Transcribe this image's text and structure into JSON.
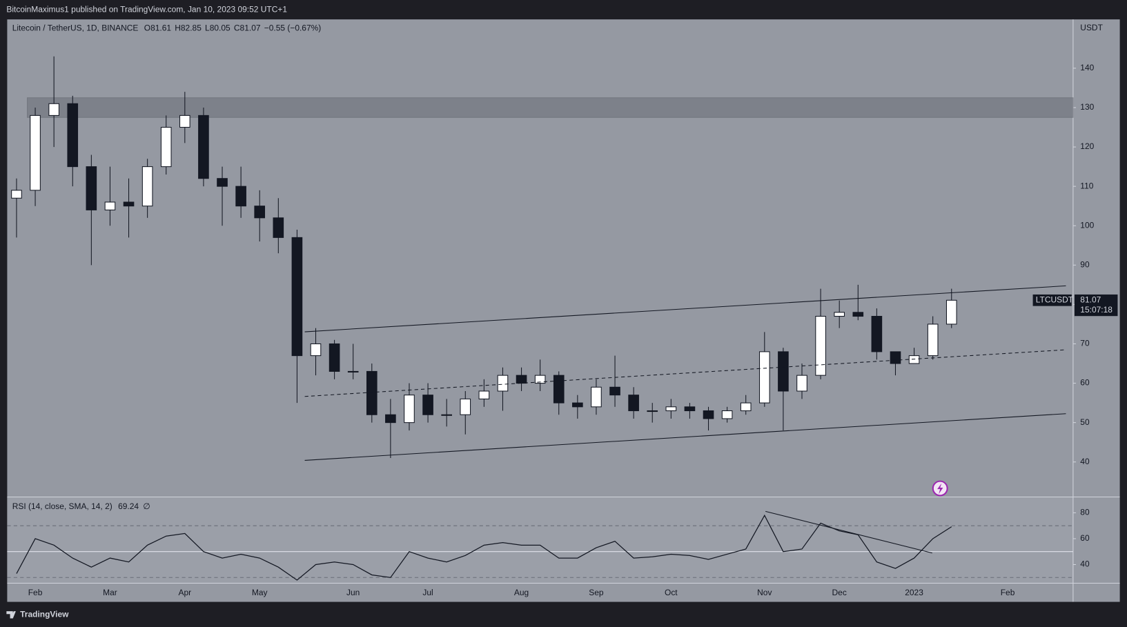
{
  "header": {
    "publisher": "BitcoinMaximus1 published on TradingView.com, Jan 10, 2023 09:52 UTC+1",
    "brand": "TradingView"
  },
  "chart_data": [
    {
      "type": "candlestick",
      "title": "Litecoin / TetherUS, 1D, BINANCE",
      "legend_items": [
        {
          "key": "O",
          "value": 81.61
        },
        {
          "key": "H",
          "value": 82.85
        },
        {
          "key": "L",
          "value": 80.05
        },
        {
          "key": "C",
          "value": 81.07
        }
      ],
      "change": "−0.55 (−0.67%)",
      "currency": "USDT",
      "symbol_label": "LTCUSDT",
      "countdown": "15:07:18",
      "categories": [
        null,
        "Feb",
        null,
        null,
        null,
        "Mar",
        null,
        null,
        null,
        "Apr",
        null,
        null,
        null,
        "May",
        null,
        null,
        null,
        null,
        "Jun",
        null,
        null,
        null,
        "Jul",
        null,
        null,
        null,
        null,
        "Aug",
        null,
        null,
        null,
        "Sep",
        null,
        null,
        null,
        "Oct",
        null,
        null,
        null,
        null,
        "Nov",
        null,
        null,
        null,
        "Dec",
        null,
        null,
        null,
        "2023",
        null,
        null,
        null,
        null,
        "Feb",
        null,
        null,
        null
      ],
      "open": [
        107,
        109,
        128,
        131,
        115,
        104,
        106,
        105,
        115,
        125,
        128,
        112,
        110,
        105,
        102,
        97,
        67,
        70,
        63,
        63,
        52,
        50,
        57,
        52,
        52,
        56,
        58,
        62,
        60,
        62,
        55,
        54,
        59,
        57,
        53,
        53,
        54,
        53,
        51,
        53,
        55,
        68,
        58,
        62,
        77,
        78,
        77,
        68,
        65,
        67,
        75,
        null,
        null,
        null,
        null,
        null,
        null
      ],
      "high": [
        112,
        130,
        143,
        133,
        118,
        115,
        112,
        117,
        128,
        134,
        130,
        115,
        115,
        109,
        107,
        99,
        74,
        71,
        70,
        65,
        56,
        60,
        60,
        56,
        58,
        61,
        64,
        64,
        66,
        63,
        57,
        61,
        67,
        59,
        55,
        56,
        55,
        54,
        54,
        57,
        73,
        69,
        65,
        84,
        81,
        85,
        79,
        68,
        69,
        77,
        84,
        null,
        null,
        null,
        null,
        null,
        null
      ],
      "low": [
        97,
        105,
        120,
        110,
        90,
        100,
        97,
        102,
        113,
        121,
        110,
        100,
        102,
        96,
        93,
        55,
        62,
        61,
        61,
        50,
        41,
        48,
        50,
        49,
        47,
        54,
        53,
        58,
        58,
        52,
        51,
        52,
        54,
        51,
        50,
        51,
        51,
        48,
        50,
        52,
        54,
        48,
        56,
        61,
        74,
        76,
        66,
        62,
        65,
        66,
        74,
        null,
        null,
        null,
        null,
        null,
        null
      ],
      "close": [
        109,
        128,
        131,
        115,
        104,
        106,
        105,
        115,
        125,
        128,
        112,
        110,
        105,
        102,
        97,
        67,
        70,
        63,
        63,
        52,
        50,
        57,
        52,
        52,
        56,
        58,
        62,
        60,
        62,
        55,
        54,
        59,
        57,
        53,
        53,
        54,
        53,
        51,
        53,
        55,
        68,
        58,
        62,
        77,
        78,
        77,
        68,
        65,
        67,
        75,
        81.07,
        null,
        null,
        null,
        null,
        null,
        null
      ],
      "up_color": "#ffffff",
      "down_color": "#131722",
      "zone": [
        127.5,
        132.5
      ],
      "ylim": [
        31.1,
        152.4
      ],
      "yticks": [
        40,
        50,
        60,
        70,
        80,
        90,
        100,
        110,
        120,
        130,
        140
      ]
    },
    {
      "type": "line",
      "title": "RSI (14, close, SMA, 14, 2)",
      "last_value": 69.24,
      "flag": "∅",
      "color": "#131722",
      "values": [
        33,
        60,
        55,
        45,
        38,
        45,
        42,
        55,
        62,
        64,
        50,
        45,
        48,
        45,
        38,
        28,
        40,
        42,
        40,
        32,
        30,
        50,
        45,
        42,
        47,
        55,
        57,
        55,
        55,
        45,
        45,
        53,
        58,
        45,
        46,
        48,
        47,
        44,
        48,
        52,
        78,
        50,
        52,
        72,
        66,
        63,
        42,
        37,
        45,
        60,
        69.24,
        null,
        null,
        null,
        null,
        null,
        null
      ],
      "hlines": [
        30,
        50,
        70
      ],
      "ylim": [
        25.6,
        92.2
      ],
      "yticks": [
        40,
        60,
        80
      ]
    }
  ]
}
